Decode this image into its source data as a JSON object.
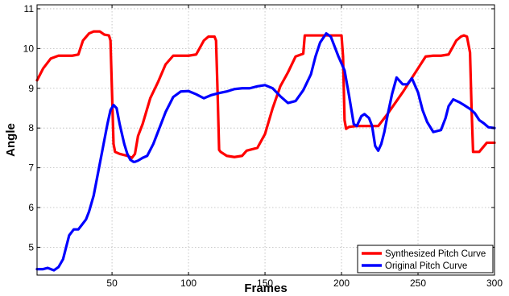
{
  "chart_data": {
    "type": "line",
    "title": "",
    "xlabel": "Frames",
    "ylabel": "Angle",
    "xlim": [
      1,
      300
    ],
    "ylim": [
      4.3,
      11.1
    ],
    "xticks": [
      50,
      100,
      150,
      200,
      250,
      300
    ],
    "yticks": [
      5,
      6,
      7,
      8,
      9,
      10,
      11
    ],
    "grid": true,
    "legend_position": "bottom-right",
    "series": [
      {
        "name": "Synthesized Pitch Curve",
        "color": "#ff0000",
        "x": [
          1,
          5,
          10,
          15,
          20,
          24,
          28,
          31,
          35,
          38,
          42,
          45,
          48,
          49,
          50,
          51,
          52,
          55,
          60,
          63,
          65,
          67,
          70,
          75,
          80,
          85,
          90,
          95,
          100,
          105,
          110,
          113,
          115,
          117,
          118,
          119,
          120,
          121,
          125,
          130,
          135,
          138,
          140,
          145,
          150,
          155,
          160,
          165,
          170,
          175,
          176,
          177,
          180,
          190,
          200,
          201,
          202,
          203,
          205,
          210,
          215,
          220,
          224,
          230,
          240,
          250,
          255,
          260,
          265,
          270,
          275,
          278,
          280,
          282,
          284,
          285,
          286,
          290,
          295,
          300
        ],
        "y": [
          9.2,
          9.5,
          9.75,
          9.82,
          9.82,
          9.82,
          9.85,
          10.2,
          10.38,
          10.43,
          10.43,
          10.35,
          10.33,
          10.2,
          8.9,
          7.6,
          7.4,
          7.35,
          7.3,
          7.25,
          7.35,
          7.8,
          8.1,
          8.75,
          9.15,
          9.6,
          9.82,
          9.82,
          9.82,
          9.85,
          10.2,
          10.3,
          10.3,
          10.3,
          10.2,
          8.9,
          7.45,
          7.4,
          7.3,
          7.27,
          7.3,
          7.43,
          7.45,
          7.5,
          7.85,
          8.5,
          9.05,
          9.4,
          9.8,
          9.87,
          10.33,
          10.33,
          10.33,
          10.33,
          10.33,
          9.8,
          8.2,
          7.98,
          8.03,
          8.05,
          8.05,
          8.05,
          8.05,
          8.35,
          8.9,
          9.5,
          9.8,
          9.82,
          9.82,
          9.85,
          10.2,
          10.3,
          10.33,
          10.3,
          9.9,
          8.5,
          7.4,
          7.4,
          7.63,
          7.63
        ]
      },
      {
        "name": "Original Pitch Curve",
        "color": "#0000ff",
        "x": [
          1,
          5,
          8,
          12,
          15,
          18,
          20,
          22,
          25,
          28,
          30,
          33,
          35,
          38,
          41,
          44,
          47,
          49,
          51,
          53,
          55,
          58,
          60,
          62,
          64,
          65,
          67,
          70,
          73,
          77,
          80,
          85,
          90,
          95,
          100,
          105,
          110,
          115,
          120,
          125,
          130,
          135,
          140,
          145,
          150,
          155,
          160,
          165,
          170,
          175,
          180,
          183,
          186,
          190,
          193,
          195,
          198,
          202,
          205,
          208,
          210,
          213,
          215,
          218,
          220,
          222,
          224,
          226,
          228,
          230,
          233,
          236,
          240,
          243,
          246,
          250,
          253,
          256,
          260,
          265,
          268,
          270,
          273,
          277,
          280,
          284,
          287,
          290,
          293,
          296,
          300
        ],
        "y": [
          4.45,
          4.45,
          4.48,
          4.42,
          4.5,
          4.7,
          5.0,
          5.3,
          5.45,
          5.45,
          5.55,
          5.7,
          5.9,
          6.3,
          6.9,
          7.5,
          8.1,
          8.45,
          8.58,
          8.5,
          8.1,
          7.6,
          7.35,
          7.2,
          7.15,
          7.15,
          7.18,
          7.25,
          7.3,
          7.6,
          7.9,
          8.4,
          8.78,
          8.92,
          8.93,
          8.85,
          8.75,
          8.83,
          8.88,
          8.92,
          8.98,
          9.0,
          9.0,
          9.05,
          9.08,
          9.0,
          8.8,
          8.63,
          8.68,
          8.95,
          9.35,
          9.8,
          10.15,
          10.38,
          10.3,
          10.1,
          9.8,
          9.45,
          8.8,
          8.1,
          8.05,
          8.3,
          8.35,
          8.25,
          8.05,
          7.55,
          7.43,
          7.6,
          7.9,
          8.3,
          8.85,
          9.27,
          9.1,
          9.1,
          9.25,
          8.9,
          8.45,
          8.15,
          7.9,
          7.95,
          8.25,
          8.55,
          8.72,
          8.65,
          8.58,
          8.48,
          8.38,
          8.2,
          8.12,
          8.02,
          8.0
        ]
      }
    ]
  }
}
